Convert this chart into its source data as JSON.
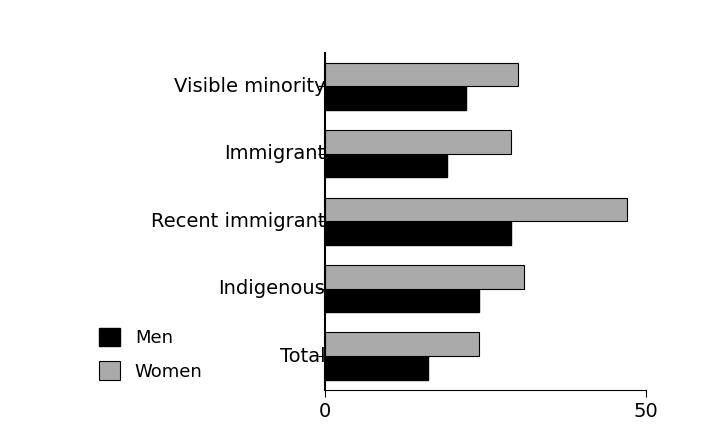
{
  "categories": [
    "Visible minority",
    "Immigrant",
    "Recent immigrant",
    "Indigenous",
    "Total"
  ],
  "men_values": [
    22,
    19,
    29,
    24,
    16
  ],
  "women_values": [
    30,
    29,
    47,
    31,
    24
  ],
  "men_color": "#000000",
  "women_color": "#aaaaaa",
  "xlim": [
    0,
    50
  ],
  "xticks": [
    0,
    50
  ],
  "legend_men": "Men",
  "legend_women": "Women",
  "bar_height": 0.35,
  "background_color": "#ffffff",
  "tick_fontsize": 14,
  "label_fontsize": 14,
  "legend_fontsize": 13
}
